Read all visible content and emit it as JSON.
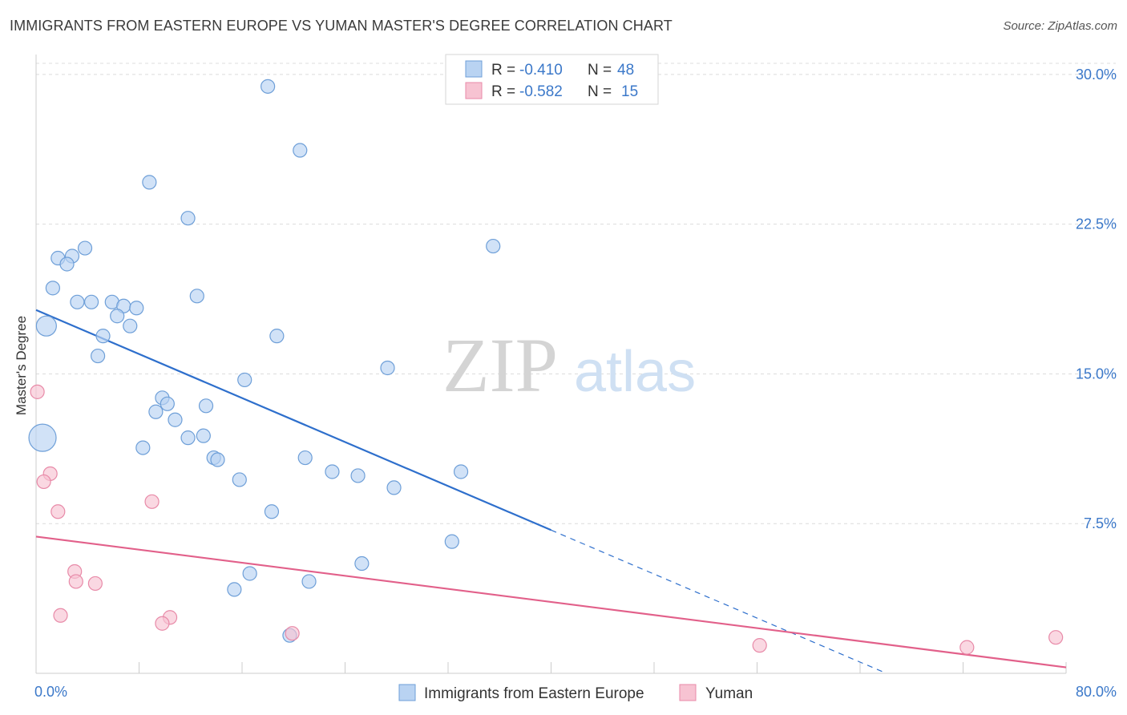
{
  "title": "IMMIGRANTS FROM EASTERN EUROPE VS YUMAN MASTER'S DEGREE CORRELATION CHART",
  "source": "Source: ZipAtlas.com",
  "watermark": {
    "zip": "ZIP",
    "atlas": "atlas"
  },
  "colors": {
    "blue_fill": "#b9d3f2",
    "blue_stroke": "#6e9fd8",
    "blue_line": "#2e6fcc",
    "pink_fill": "#f7c3d2",
    "pink_stroke": "#e88aa8",
    "pink_line": "#e2608a",
    "grid": "#dcdcdc",
    "tick_text": "#3b78c9"
  },
  "legend": {
    "rows": [
      {
        "r_label": "R =",
        "r_value": "-0.410",
        "n_label": "N =",
        "n_value": "48"
      },
      {
        "r_label": "R =",
        "r_value": "-0.582",
        "n_label": "N =",
        "n_value": "15"
      }
    ]
  },
  "chart_data": {
    "type": "scatter",
    "title": "IMMIGRANTS FROM EASTERN EUROPE VS YUMAN MASTER'S DEGREE CORRELATION CHART",
    "xlabel": "",
    "ylabel": "Master's Degree",
    "xlim": [
      0,
      80
    ],
    "ylim": [
      0,
      31
    ],
    "x_tick_labels": [
      "0.0%",
      "80.0%"
    ],
    "y_ticks": [
      7.5,
      15.0,
      22.5,
      30.0
    ],
    "y_tick_labels": [
      "7.5%",
      "15.0%",
      "22.5%",
      "30.0%"
    ],
    "grid": true,
    "legend_position": "top-center",
    "series": [
      {
        "name": "Immigrants from Eastern Europe",
        "color": "#b9d3f2",
        "points": [
          [
            18.0,
            29.4,
            1
          ],
          [
            20.5,
            26.2,
            1
          ],
          [
            8.8,
            24.6,
            1
          ],
          [
            11.8,
            22.8,
            1
          ],
          [
            3.8,
            21.3,
            1
          ],
          [
            1.7,
            20.8,
            1
          ],
          [
            2.8,
            20.9,
            1
          ],
          [
            2.4,
            20.5,
            1
          ],
          [
            1.3,
            19.3,
            1
          ],
          [
            12.5,
            18.9,
            1
          ],
          [
            3.2,
            18.6,
            1
          ],
          [
            4.3,
            18.6,
            1
          ],
          [
            5.9,
            18.6,
            1
          ],
          [
            6.8,
            18.4,
            1
          ],
          [
            7.8,
            18.3,
            1
          ],
          [
            6.3,
            17.9,
            1
          ],
          [
            7.3,
            17.4,
            1
          ],
          [
            0.8,
            17.4,
            2
          ],
          [
            5.2,
            16.9,
            1
          ],
          [
            18.7,
            16.9,
            1
          ],
          [
            4.8,
            15.9,
            1
          ],
          [
            27.3,
            15.3,
            1
          ],
          [
            16.2,
            14.7,
            1
          ],
          [
            9.8,
            13.8,
            1
          ],
          [
            10.2,
            13.5,
            1
          ],
          [
            13.2,
            13.4,
            1
          ],
          [
            9.3,
            13.1,
            1
          ],
          [
            10.8,
            12.7,
            1
          ],
          [
            13.0,
            11.9,
            1
          ],
          [
            11.8,
            11.8,
            1
          ],
          [
            0.5,
            11.8,
            3
          ],
          [
            8.3,
            11.3,
            1
          ],
          [
            13.8,
            10.8,
            1
          ],
          [
            14.1,
            10.7,
            1
          ],
          [
            20.9,
            10.8,
            1
          ],
          [
            23.0,
            10.1,
            1
          ],
          [
            25.0,
            9.9,
            1
          ],
          [
            33.0,
            10.1,
            1
          ],
          [
            15.8,
            9.7,
            1
          ],
          [
            27.8,
            9.3,
            1
          ],
          [
            18.3,
            8.1,
            1
          ],
          [
            32.3,
            6.6,
            1
          ],
          [
            35.5,
            21.4,
            1
          ],
          [
            25.3,
            5.5,
            1
          ],
          [
            16.6,
            5.0,
            1
          ],
          [
            21.2,
            4.6,
            1
          ],
          [
            15.4,
            4.2,
            1
          ],
          [
            19.7,
            1.9,
            1
          ]
        ]
      },
      {
        "name": "Yuman",
        "color": "#f7c3d2",
        "points": [
          [
            0.1,
            14.1,
            1
          ],
          [
            1.1,
            10.0,
            1
          ],
          [
            0.6,
            9.6,
            1
          ],
          [
            9.0,
            8.6,
            1
          ],
          [
            1.7,
            8.1,
            1
          ],
          [
            3.0,
            5.1,
            1
          ],
          [
            3.1,
            4.6,
            1
          ],
          [
            4.6,
            4.5,
            1
          ],
          [
            1.9,
            2.9,
            1
          ],
          [
            10.4,
            2.8,
            1
          ],
          [
            9.8,
            2.5,
            1
          ],
          [
            19.9,
            2.0,
            1
          ],
          [
            56.2,
            1.4,
            1
          ],
          [
            72.3,
            1.3,
            1
          ],
          [
            79.2,
            1.8,
            1
          ]
        ]
      }
    ],
    "trendlines": [
      {
        "series": "Immigrants from Eastern Europe",
        "x0": 0,
        "y0": 18.2,
        "x_solid_end": 40,
        "x_dash_end": 66,
        "slope": -0.2756
      },
      {
        "series": "Yuman",
        "x0": 0,
        "y0": 6.85,
        "x1": 80,
        "y1": 0.3
      }
    ]
  }
}
